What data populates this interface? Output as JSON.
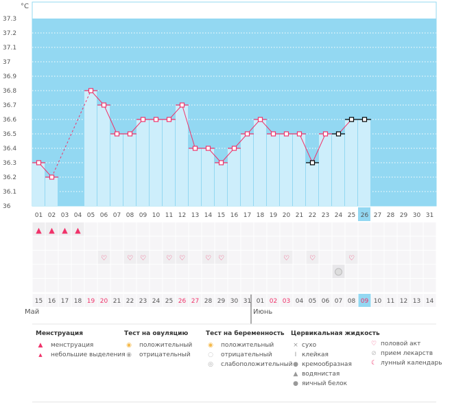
{
  "chart_data": {
    "type": "line",
    "unit_label": "°C",
    "ylim": [
      36,
      37.3
    ],
    "yticks": [
      "37.3",
      "37.2",
      "37.1",
      "37",
      "36.9",
      "36.8",
      "36.7",
      "36.6",
      "36.5",
      "36.4",
      "36.3",
      "36.2",
      "36.1",
      "36"
    ],
    "cycle_days": [
      "01",
      "02",
      "03",
      "04",
      "05",
      "06",
      "07",
      "08",
      "09",
      "10",
      "11",
      "12",
      "13",
      "14",
      "15",
      "16",
      "17",
      "18",
      "19",
      "20",
      "21",
      "22",
      "23",
      "24",
      "25",
      "26",
      "27",
      "28",
      "29",
      "30",
      "31"
    ],
    "temperatures": [
      36.3,
      36.2,
      null,
      null,
      36.8,
      36.7,
      36.5,
      36.5,
      36.6,
      36.6,
      36.6,
      36.7,
      36.4,
      36.4,
      36.3,
      36.4,
      36.5,
      36.6,
      36.5,
      36.5,
      36.5,
      36.3,
      36.5,
      36.5,
      36.6,
      36.6,
      null,
      null,
      null,
      null,
      null
    ],
    "excluded_points": [
      22,
      24,
      25,
      26
    ],
    "current_day": "26",
    "menstruation_days": [
      1,
      2,
      3,
      4
    ],
    "intercourse_days": [
      6,
      8,
      9,
      11,
      12,
      14,
      15,
      20,
      22,
      25
    ],
    "medication_days": [
      24
    ],
    "calendar_dates": [
      "15",
      "16",
      "17",
      "18",
      "19",
      "20",
      "21",
      "22",
      "23",
      "24",
      "25",
      "26",
      "27",
      "28",
      "29",
      "30",
      "31",
      "01",
      "02",
      "03",
      "04",
      "05",
      "06",
      "07",
      "08",
      "09",
      "10",
      "11",
      "12",
      "13",
      "14"
    ],
    "weekend_dates_idx": [
      4,
      5,
      11,
      12,
      18,
      19,
      25
    ],
    "months": [
      {
        "label": "Май",
        "start_idx": 0
      },
      {
        "label": "Июнь",
        "start_idx": 17
      }
    ],
    "colors": {
      "bg": "#93d8f2",
      "bar": "#cdeefb",
      "line": "#f0336a",
      "excluded": "#000000",
      "weekend": "#f0336a"
    }
  },
  "legend": {
    "menstruation": {
      "title": "Менструация",
      "items": [
        "менструация",
        "небольшие выделения"
      ]
    },
    "ovulation": {
      "title": "Тест на овуляцию",
      "items": [
        "положительный",
        "отрицательный"
      ]
    },
    "pregnancy": {
      "title": "Тест на беременность",
      "items": [
        "положительный",
        "отрицательный",
        "слабоположительный"
      ]
    },
    "cervical": {
      "title": "Цервикальная жидкость",
      "items": [
        "сухо",
        "клейкая",
        "кремообразная",
        "водянистая",
        "яичный белок"
      ]
    },
    "other": {
      "items": [
        "половой акт",
        "прием лекарств",
        "лунный календарь"
      ]
    }
  }
}
